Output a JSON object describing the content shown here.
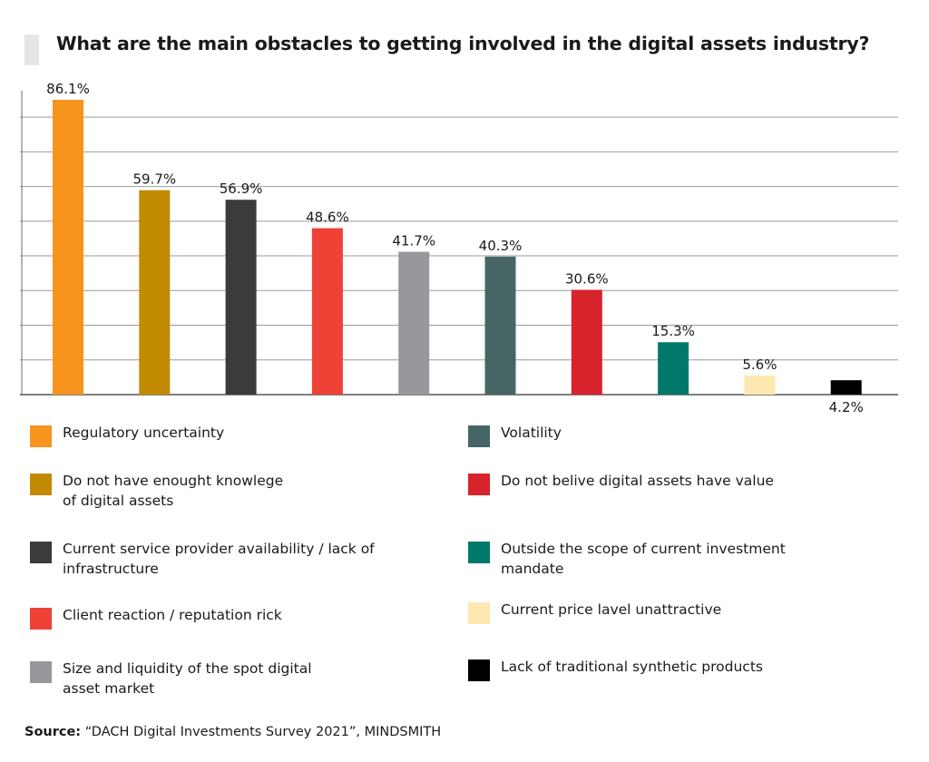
{
  "chart_data": {
    "type": "bar",
    "title": "What are the main obstacles to getting involved in the digital assets industry?",
    "categories": [
      "Regulatory uncertainty",
      "Do not have enought knowlege of digital assets",
      "Current service provider availability / lack of infrastructure",
      "Client reaction / reputation rick",
      "Size and liquidity of the spot digital asset market",
      "Volatility",
      "Do not  belive digital assets have value",
      "Outside the scope of current investment mandate",
      "Current price lavel unattractive",
      "Lack of traditional synthetic products"
    ],
    "values": [
      86.1,
      59.7,
      56.9,
      48.6,
      41.7,
      40.3,
      30.6,
      15.3,
      5.6,
      4.2
    ],
    "value_labels": [
      "86.1%",
      "59.7%",
      "56.9%",
      "48.6%",
      "41.7%",
      "40.3%",
      "30.6%",
      "15.3%",
      "5.6%",
      "4.2%"
    ],
    "colors": [
      "#f7941d",
      "#c18a00",
      "#3b3b3b",
      "#ef4136",
      "#97979c",
      "#456665",
      "#d7232b",
      "#00796b",
      "#fde8b0",
      "#000000"
    ],
    "ylim": [
      0,
      86.1
    ],
    "grid": true,
    "legend_position": "bottom",
    "source_label": "Source:",
    "source_text": "“DACH Digital Investments Survey 2021”, MINDSMITH"
  },
  "legend": {
    "left": [
      {
        "label_line1": "Regulatory uncertainty",
        "label_line2": ""
      },
      {
        "label_line1": "Do not have enought knowlege",
        "label_line2": "of digital assets"
      },
      {
        "label_line1": "Current service provider availability / lack of",
        "label_line2": "infrastructure"
      },
      {
        "label_line1": "Client reaction / reputation rick",
        "label_line2": ""
      },
      {
        "label_line1": "Size and liquidity of the spot digital",
        "label_line2": "asset market"
      }
    ],
    "right": [
      {
        "label_line1": "Volatility",
        "label_line2": ""
      },
      {
        "label_line1": "Do not  belive digital assets have value",
        "label_line2": ""
      },
      {
        "label_line1": "Outside the scope of current investment",
        "label_line2": "mandate"
      },
      {
        "label_line1": "Current price lavel unattractive",
        "label_line2": ""
      },
      {
        "label_line1": "Lack of traditional synthetic products",
        "label_line2": ""
      }
    ]
  }
}
